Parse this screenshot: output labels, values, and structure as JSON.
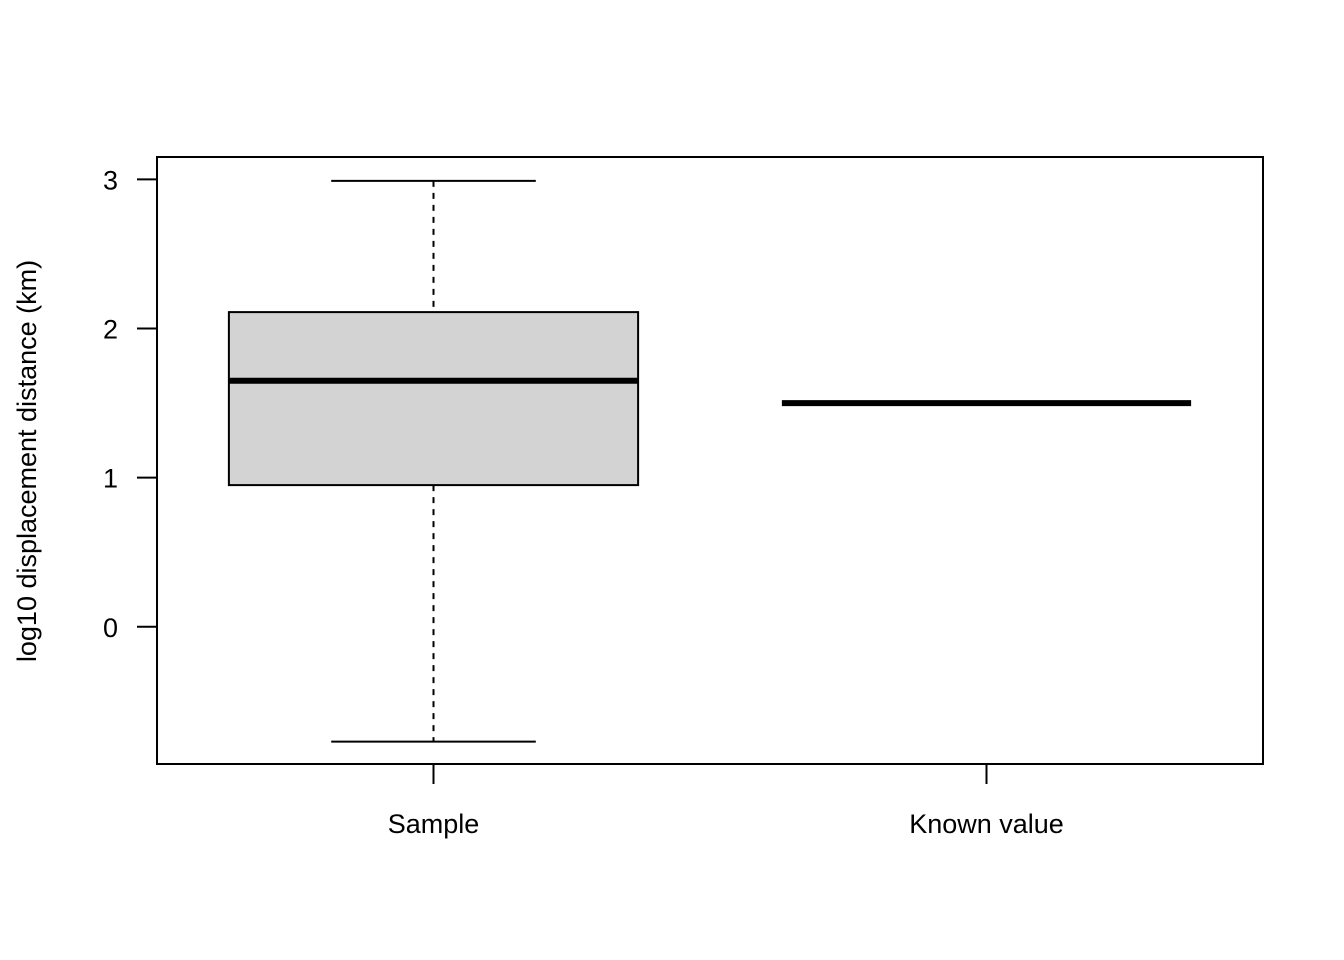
{
  "chart_data": {
    "type": "boxplot",
    "title": "",
    "xlabel": "",
    "ylabel": "log10 displacement distance (km)",
    "ylim": [
      -0.92,
      3.15
    ],
    "yticks": [
      0,
      1,
      2,
      3
    ],
    "grid": false,
    "categories": [
      "Sample",
      "Known value"
    ],
    "boxes": [
      {
        "category": "Sample",
        "min": -0.77,
        "q1": 0.95,
        "median": 1.65,
        "q3": 2.11,
        "max": 2.99,
        "fill": "#d3d3d3"
      },
      {
        "category": "Known value",
        "min": 1.5,
        "q1": 1.5,
        "median": 1.5,
        "q3": 1.5,
        "max": 1.5,
        "fill": "#d3d3d3"
      }
    ]
  }
}
